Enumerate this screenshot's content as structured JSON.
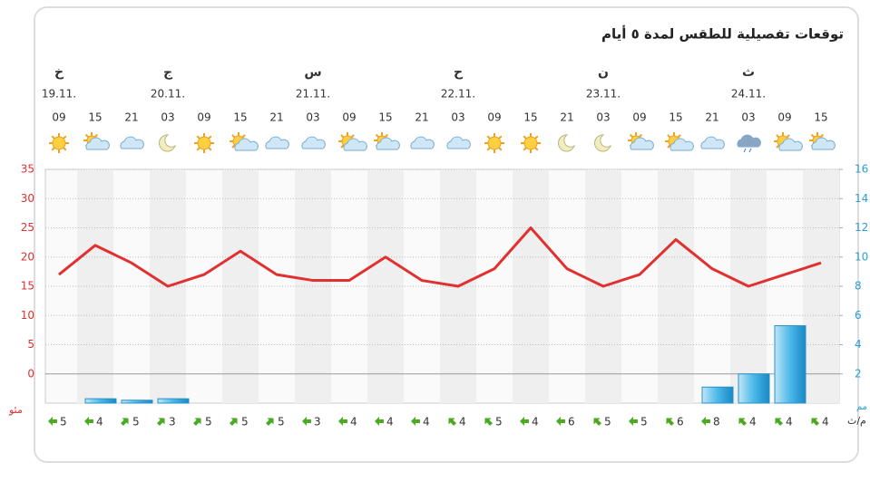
{
  "chart_data": {
    "type": "line",
    "title": "توقعات تفصيلية للطقس لمدة ٥ أيام",
    "days": [
      {
        "name": "خ",
        "date": "19.11."
      },
      {
        "name": "ج",
        "date": "20.11."
      },
      {
        "name": "س",
        "date": "21.11."
      },
      {
        "name": "ح",
        "date": "22.11."
      },
      {
        "name": "ن",
        "date": "23.11."
      },
      {
        "name": "ث",
        "date": "24.11."
      }
    ],
    "categories": [
      "09",
      "15",
      "21",
      "03",
      "09",
      "15",
      "21",
      "03",
      "09",
      "15",
      "21",
      "03",
      "09",
      "15",
      "21",
      "03",
      "09",
      "15",
      "21",
      "03",
      "09",
      "15"
    ],
    "series": [
      {
        "type": "line",
        "color": "#e03030",
        "values": [
          17,
          22,
          19,
          15,
          17,
          21,
          17,
          16,
          16,
          20,
          16,
          15,
          18,
          25,
          18,
          15,
          17,
          23,
          18,
          15,
          17,
          19
        ]
      },
      {
        "type": "bar",
        "axis": "y2",
        "color": "#3aa8dc",
        "values": [
          0,
          0.3,
          0.2,
          0.3,
          0,
          0,
          0,
          0,
          0,
          0,
          0,
          0,
          0,
          0,
          0,
          0,
          0,
          0,
          1.1,
          2,
          5.3,
          0
        ]
      }
    ],
    "ylim": [
      -5,
      35
    ],
    "yticks": [
      0,
      5,
      10,
      15,
      20,
      25,
      30,
      35
    ],
    "y2lim": [
      0,
      16
    ],
    "y2ticks": [
      2,
      4,
      6,
      8,
      10,
      12,
      14,
      16
    ],
    "y_unit": "مئو",
    "y2_unit": "مم",
    "wind_unit": "م/ث",
    "wind": [
      5,
      4,
      5,
      3,
      5,
      5,
      5,
      3,
      4,
      4,
      4,
      4,
      5,
      4,
      6,
      5,
      5,
      6,
      8,
      4,
      4,
      4
    ],
    "grid": true
  }
}
